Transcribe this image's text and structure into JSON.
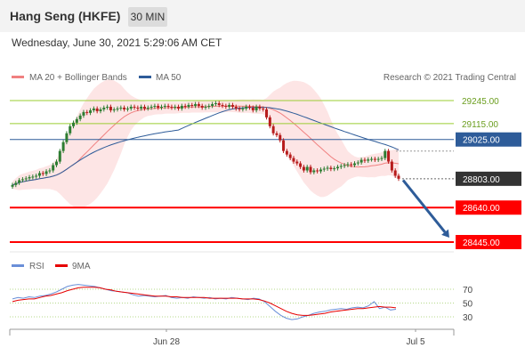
{
  "header": {
    "title": "Hang Seng (HKFE)",
    "timeframe": "30 MIN"
  },
  "date_line": "Wednesday, June 30, 2021 5:29:06 AM CET",
  "credit": "Research © 2021 Trading Central",
  "colors": {
    "ma20": "#f08080",
    "bollinger_fill": "#fde0e0",
    "ma50": "#2e5c99",
    "resistance": "#9acd32",
    "pivot": "#2e5c99",
    "support": "#ff0000",
    "last": "#333333",
    "arrow": "#2e5c99",
    "rsi": "#6a8fd8",
    "rsi_ma": "#e60000",
    "candle_up": "#2e7d32",
    "candle_down": "#b71c1c"
  },
  "chart_data": [
    {
      "type": "candlestick",
      "title": "Hang Seng (HKFE)",
      "legend": [
        "MA 20 + Bollinger Bands",
        "MA 50"
      ],
      "legend_position": "top-left",
      "x_ticks": [
        "Jun 28",
        "Jul 5"
      ],
      "ylim": [
        28420,
        29400
      ],
      "levels": [
        {
          "value": 29245,
          "label": "29245.00",
          "kind": "resistance"
        },
        {
          "value": 29115,
          "label": "29115.00",
          "kind": "resistance"
        },
        {
          "value": 29025,
          "label": "29025.00",
          "kind": "pivot"
        },
        {
          "value": 28803,
          "label": "28803.00",
          "kind": "last"
        },
        {
          "value": 28640,
          "label": "28640.00",
          "kind": "support"
        },
        {
          "value": 28445,
          "label": "28445.00",
          "kind": "support"
        }
      ],
      "arrow": {
        "from": 28795,
        "to": 28470,
        "direction": "down"
      },
      "closes": [
        28768,
        28780,
        28795,
        28800,
        28805,
        28812,
        28815,
        28820,
        28835,
        28830,
        28845,
        28850,
        28880,
        28900,
        28960,
        29010,
        29060,
        29100,
        29120,
        29140,
        29160,
        29180,
        29175,
        29190,
        29200,
        29185,
        29195,
        29205,
        29210,
        29190,
        29195,
        29200,
        29205,
        29195,
        29200,
        29210,
        29205,
        29200,
        29210,
        29200,
        29205,
        29210,
        29215,
        29205,
        29210,
        29215,
        29210,
        29205,
        29210,
        29200,
        29215,
        29210,
        29220,
        29215,
        29225,
        29215,
        29205,
        29210,
        29215,
        29225,
        29230,
        29220,
        29215,
        29210,
        29220,
        29210,
        29200,
        29195,
        29200,
        29210,
        29205,
        29190,
        29210,
        29200,
        29195,
        29150,
        29100,
        29060,
        29050,
        29020,
        28960,
        28940,
        28920,
        28900,
        28890,
        28870,
        28850,
        28870,
        28840,
        28850,
        28845,
        28855,
        28860,
        28865,
        28858,
        28862,
        28870,
        28875,
        28880,
        28885,
        28880,
        28890,
        28895,
        28910,
        28905,
        28912,
        28915,
        28910,
        28915,
        28920,
        28960,
        28900,
        28850,
        28820,
        28803
      ]
    },
    {
      "type": "line",
      "title": "RSI",
      "legend": [
        "RSI",
        "9MA"
      ],
      "legend_position": "top-left",
      "ylim": [
        10,
        90
      ],
      "y_ticks": [
        70,
        50,
        30
      ],
      "series": [
        {
          "name": "RSI",
          "values": [
            56,
            58,
            57,
            59,
            58,
            60,
            61,
            63,
            66,
            70,
            74,
            76,
            77,
            76,
            75,
            74,
            72,
            70,
            68,
            67,
            66,
            65,
            62,
            60,
            61,
            60,
            59,
            60,
            61,
            58,
            57,
            58,
            57,
            59,
            58,
            57,
            58,
            56,
            57,
            56,
            58,
            57,
            56,
            55,
            57,
            56,
            52,
            45,
            38,
            32,
            28,
            26,
            27,
            30,
            32,
            35,
            37,
            38,
            40,
            41,
            42,
            41,
            43,
            44,
            43,
            46,
            52,
            42,
            44,
            40,
            41
          ]
        },
        {
          "name": "9MA",
          "values": [
            52,
            54,
            55,
            56,
            56,
            58,
            60,
            61,
            63,
            65,
            68,
            70,
            72,
            73,
            73,
            73,
            72,
            70,
            69,
            67,
            66,
            65,
            64,
            63,
            62,
            61,
            60,
            60,
            60,
            59,
            59,
            58,
            58,
            58,
            58,
            58,
            57,
            57,
            57,
            57,
            57,
            57,
            56,
            56,
            56,
            55,
            53,
            50,
            46,
            42,
            38,
            35,
            33,
            32,
            32,
            33,
            34,
            35,
            37,
            38,
            39,
            40,
            41,
            42,
            42,
            43,
            44,
            45,
            44,
            44,
            43
          ]
        }
      ]
    }
  ]
}
